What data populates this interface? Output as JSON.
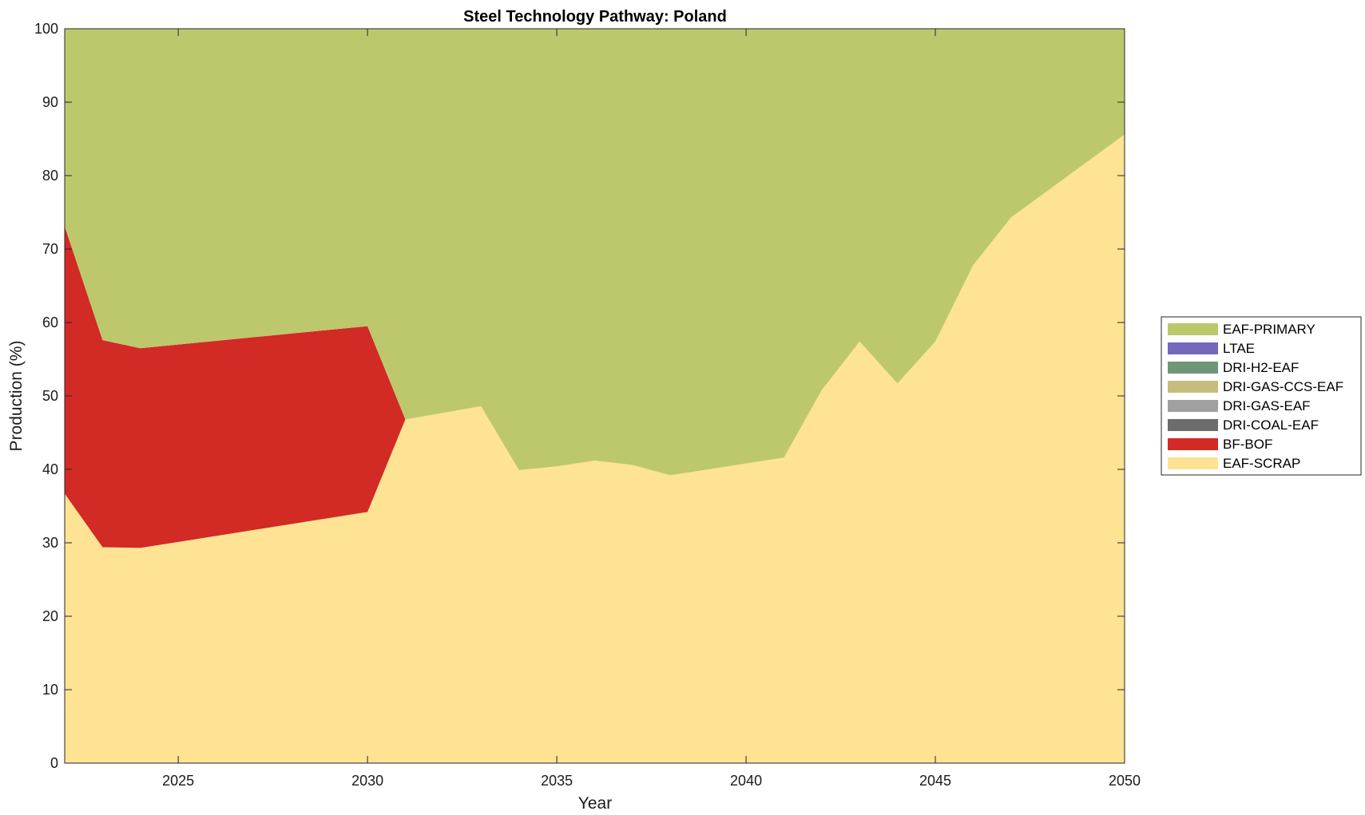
{
  "chart_data": {
    "type": "area",
    "title": "Steel Technology Pathway: Poland",
    "xlabel": "Year",
    "ylabel": "Production (%)",
    "xlim": [
      2022,
      2050
    ],
    "ylim": [
      0,
      100
    ],
    "x_ticks": [
      2025,
      2030,
      2035,
      2040,
      2045,
      2050
    ],
    "y_ticks": [
      0,
      10,
      20,
      30,
      40,
      50,
      60,
      70,
      80,
      90,
      100
    ],
    "legend_placement": "right",
    "x": [
      2022,
      2023,
      2024,
      2030,
      2031,
      2033,
      2034,
      2035,
      2036,
      2037,
      2038,
      2041,
      2042,
      2043,
      2044,
      2045,
      2046,
      2047,
      2050
    ],
    "series": [
      {
        "name": "EAF-SCRAP",
        "color": "#fde393",
        "values": [
          36.7,
          29.4,
          29.3,
          34.2,
          46.8,
          48.6,
          39.9,
          40.4,
          41.2,
          40.6,
          39.2,
          41.6,
          50.8,
          57.4,
          51.7,
          57.4,
          67.8,
          74.3,
          85.6
        ]
      },
      {
        "name": "BF-BOF",
        "color": "#d22a25",
        "values": [
          36.4,
          28.2,
          27.2,
          25.3,
          0,
          0,
          0,
          0,
          0,
          0,
          0,
          0,
          0,
          0,
          0,
          0,
          0,
          0,
          0
        ]
      },
      {
        "name": "DRI-COAL-EAF",
        "color": "#6c6c6c",
        "values": [
          0,
          0,
          0,
          0,
          0,
          0,
          0,
          0,
          0,
          0,
          0,
          0,
          0,
          0,
          0,
          0,
          0,
          0,
          0
        ]
      },
      {
        "name": "DRI-GAS-EAF",
        "color": "#a0a0a0",
        "values": [
          0,
          0,
          0,
          0,
          0,
          0,
          0,
          0,
          0,
          0,
          0,
          0,
          0,
          0,
          0,
          0,
          0,
          0,
          0
        ]
      },
      {
        "name": "DRI-GAS-CCS-EAF",
        "color": "#c6bc7e",
        "values": [
          0,
          0,
          0,
          0,
          0,
          0,
          0,
          0,
          0,
          0,
          0,
          0,
          0,
          0,
          0,
          0,
          0,
          0,
          0
        ]
      },
      {
        "name": "DRI-H2-EAF",
        "color": "#6f9676",
        "values": [
          0,
          0,
          0,
          0,
          0,
          0,
          0,
          0,
          0,
          0,
          0,
          0,
          0,
          0,
          0,
          0,
          0,
          0,
          0
        ]
      },
      {
        "name": "LTAE",
        "color": "#7468bd",
        "values": [
          0,
          0,
          0,
          0,
          0,
          0,
          0,
          0,
          0,
          0,
          0,
          0,
          0,
          0,
          0,
          0,
          0,
          0,
          0
        ]
      },
      {
        "name": "EAF-PRIMARY",
        "color": "#bdc86d",
        "values": [
          26.9,
          42.4,
          43.5,
          40.5,
          53.2,
          51.4,
          60.1,
          59.6,
          58.8,
          59.4,
          60.8,
          58.4,
          49.2,
          42.6,
          48.3,
          42.6,
          32.2,
          25.7,
          14.4
        ]
      }
    ],
    "legend_order": [
      "EAF-PRIMARY",
      "LTAE",
      "DRI-H2-EAF",
      "DRI-GAS-CCS-EAF",
      "DRI-GAS-EAF",
      "DRI-COAL-EAF",
      "BF-BOF",
      "EAF-SCRAP"
    ]
  }
}
